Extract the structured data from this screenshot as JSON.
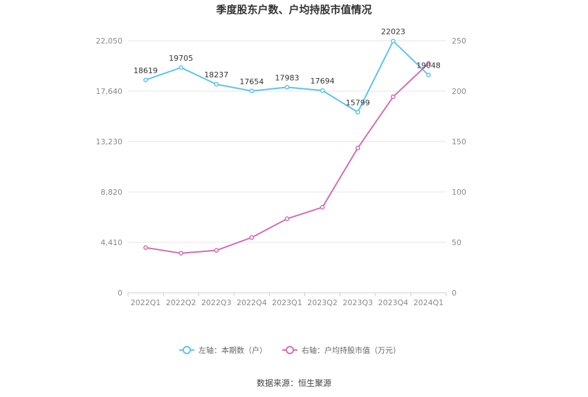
{
  "chart_data": {
    "type": "line",
    "title": "季度股东户数、户均持股市值情况",
    "categories": [
      "2022Q1",
      "2022Q2",
      "2022Q3",
      "2022Q4",
      "2023Q1",
      "2023Q2",
      "2023Q3",
      "2023Q4",
      "2024Q1"
    ],
    "left_axis": {
      "ticks": [
        "0",
        "4,410",
        "8,820",
        "13,230",
        "17,640",
        "22,050"
      ],
      "min": 0,
      "max": 22050
    },
    "right_axis": {
      "ticks": [
        "0",
        "50",
        "100",
        "150",
        "200",
        "250"
      ],
      "min": 0,
      "max": 250
    },
    "series": [
      {
        "name": "左轴：本期数（户）",
        "axis": "left",
        "color": "#5bc2f0",
        "values": [
          18619,
          19705,
          18237,
          17654,
          17983,
          17694,
          15799,
          22023,
          19048
        ],
        "labels": [
          "18619",
          "19705",
          "18237",
          "17654",
          "17983",
          "17694",
          "15799",
          "22023",
          "19048"
        ]
      },
      {
        "name": "右轴：户均持股市值（万元）",
        "axis": "right",
        "color": "#d36bb4",
        "values": [
          44.8,
          39.2,
          42.0,
          54.8,
          73.4,
          84.8,
          143.6,
          194.4,
          227.5
        ]
      }
    ],
    "grid": true,
    "legend_position": "bottom"
  },
  "source": "数据来源：恒生聚源"
}
